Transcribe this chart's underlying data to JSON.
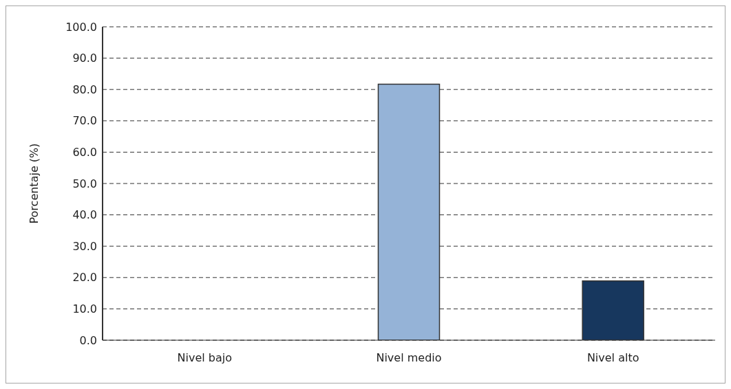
{
  "chart_data": {
    "type": "bar",
    "ylabel": "Porcentaje (%)",
    "categories": [
      "Nivel bajo",
      "Nivel medio",
      "Nivel alto"
    ],
    "values": [
      0,
      81.7,
      18.9
    ],
    "colors": [
      "#95b3d7",
      "#95b3d7",
      "#17375e"
    ],
    "ylim": [
      0,
      100
    ],
    "yticks": [
      {
        "value": 0,
        "label": "0.0"
      },
      {
        "value": 10,
        "label": "10.0"
      },
      {
        "value": 20,
        "label": "20.0"
      },
      {
        "value": 30,
        "label": "30.0"
      },
      {
        "value": 40,
        "label": "40.0"
      },
      {
        "value": 50,
        "label": "50.0"
      },
      {
        "value": 60,
        "label": "60.0"
      },
      {
        "value": 70,
        "label": "70.0"
      },
      {
        "value": 80,
        "label": "80.0"
      },
      {
        "value": 90,
        "label": "90.0"
      },
      {
        "value": 100,
        "label": "100.0"
      }
    ],
    "grid": "y",
    "legend": false
  }
}
